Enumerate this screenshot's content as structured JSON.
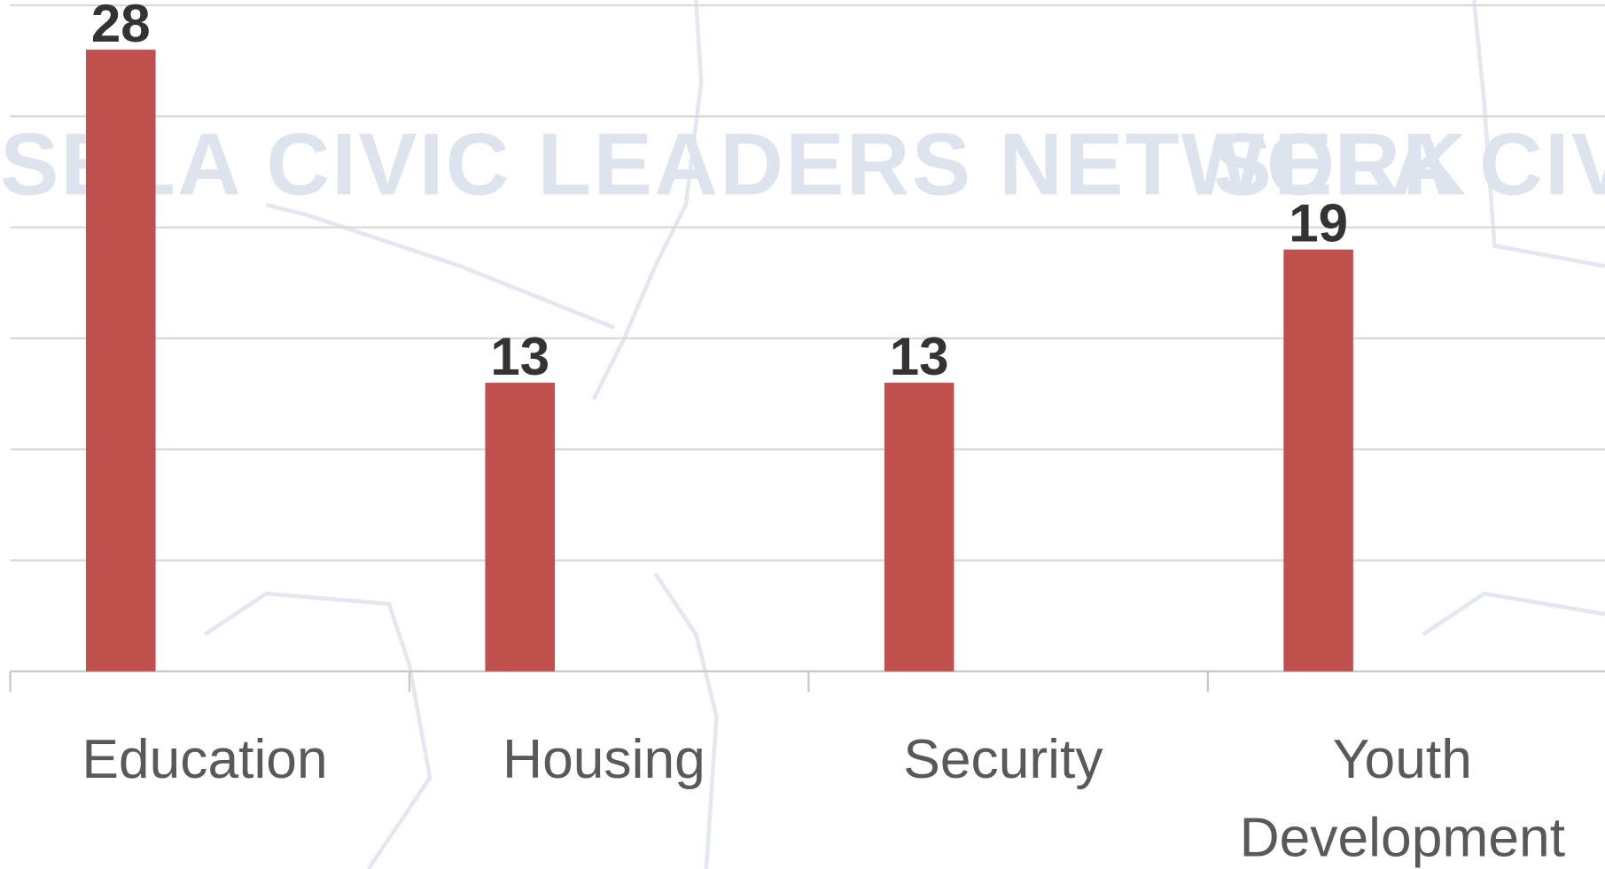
{
  "chart_data": {
    "type": "bar",
    "watermark": "SELA CIVIC LEADERS NETWORK",
    "categories": [
      "Education",
      "Housing",
      "Security",
      "Youth Development"
    ],
    "values": [
      28,
      13,
      13,
      19
    ],
    "color": "#c0504d",
    "ylim": [
      0,
      30
    ],
    "yticks": [
      0,
      5,
      10,
      15,
      20,
      25,
      30
    ],
    "grid": true
  }
}
